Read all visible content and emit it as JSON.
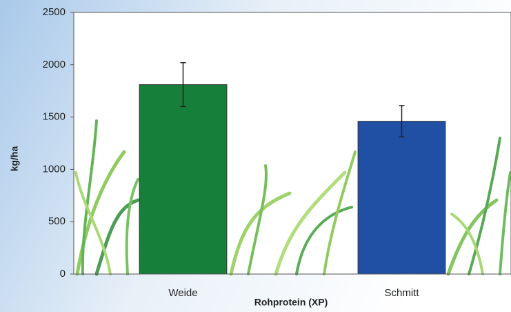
{
  "chart_data": {
    "type": "bar",
    "categories": [
      "Weide",
      "Schmitt"
    ],
    "values": [
      1810,
      1460
    ],
    "errors": [
      210,
      150
    ],
    "colors": [
      "#16803a",
      "#1f50a3"
    ],
    "ylabel": "kg/ha",
    "xlabel": "Rohprotein (XP)",
    "ylim": [
      0,
      2500
    ],
    "yticks": [
      0,
      500,
      1000,
      1500,
      2000,
      2500
    ],
    "grid": false
  }
}
